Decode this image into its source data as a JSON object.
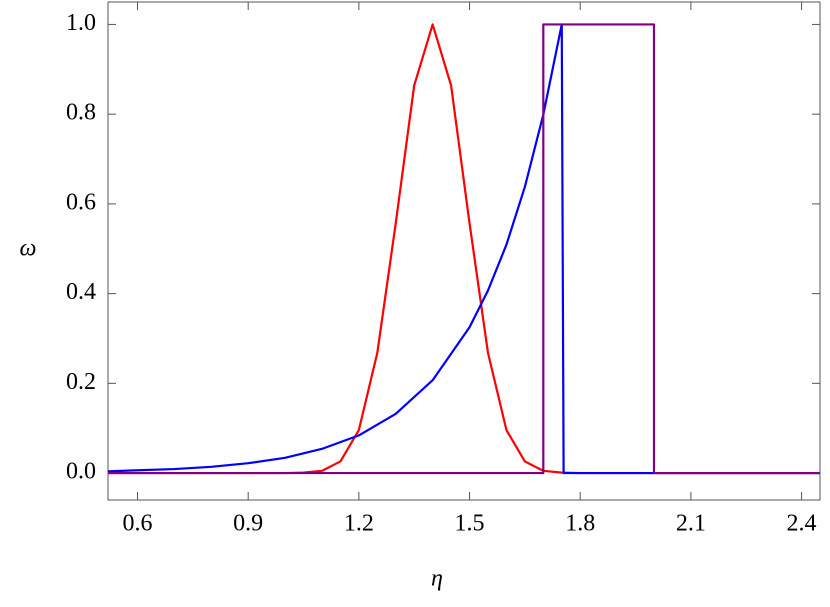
{
  "chart_data": {
    "type": "line",
    "x_label": "η",
    "y_label": "ω",
    "xlim": [
      0.52,
      2.45
    ],
    "ylim": [
      -0.06,
      1.05
    ],
    "xticks": [
      0.6,
      0.9,
      1.2,
      1.5,
      1.8,
      2.1,
      2.4
    ],
    "yticks": [
      {
        "value": 0,
        "label": "0.0"
      },
      0.2,
      0.4,
      0.6,
      0.8,
      {
        "value": 1,
        "label": "1.0"
      }
    ],
    "series": [
      {
        "color": "#ff0000",
        "x": [
          0.52,
          1.0,
          1.05,
          1.1,
          1.15,
          1.2,
          1.25,
          1.3,
          1.35,
          1.4,
          1.45,
          1.5,
          1.55,
          1.6,
          1.65,
          1.7,
          1.75,
          1.8,
          2.45
        ],
        "values": [
          0,
          0,
          0.001,
          0.005,
          0.026,
          0.096,
          0.268,
          0.557,
          0.864,
          1,
          0.864,
          0.557,
          0.268,
          0.096,
          0.026,
          0.005,
          0.001,
          0,
          0
        ]
      },
      {
        "color": "#0000ff",
        "x": [
          0.52,
          0.7,
          0.8,
          0.9,
          1.0,
          1.1,
          1.2,
          1.3,
          1.4,
          1.5,
          1.55,
          1.6,
          1.65,
          1.7,
          1.75,
          1.755,
          2.45
        ],
        "values": [
          0.004,
          0.009,
          0.014,
          0.022,
          0.034,
          0.054,
          0.084,
          0.132,
          0.207,
          0.325,
          0.407,
          0.509,
          0.638,
          0.799,
          1,
          0,
          0
        ]
      },
      {
        "color": "#800080",
        "x": [
          0.52,
          1.7,
          1.7,
          2.0,
          2.0,
          2.45
        ],
        "values": [
          0,
          0,
          1,
          1,
          0,
          0
        ]
      }
    ]
  }
}
